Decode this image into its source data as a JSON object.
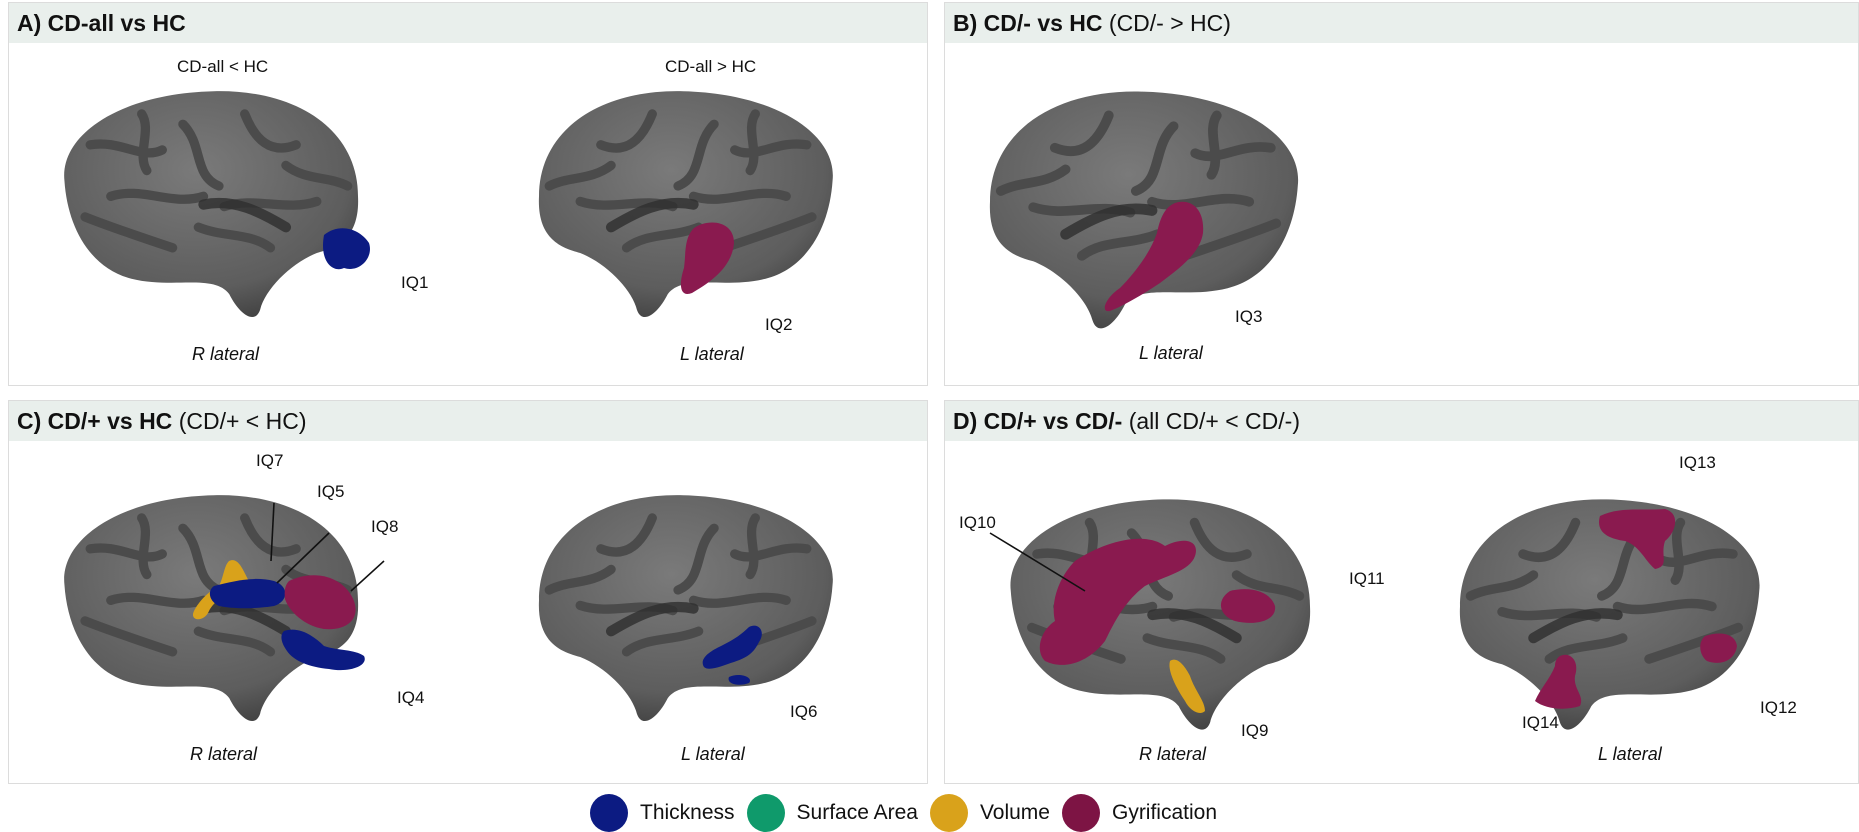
{
  "panels": {
    "a": {
      "title": "A) CD-all vs HC",
      "subtitle": "",
      "col1": "CD-all < HC",
      "col2": "CD-all > HC",
      "view1": "R lateral",
      "view2": "L lateral",
      "iq1": "IQ1",
      "iq2": "IQ2"
    },
    "b": {
      "title": "B) CD/- vs HC",
      "subtitle": "(CD/- > HC)",
      "view1": "L lateral",
      "iq3": "IQ3"
    },
    "c": {
      "title": "C) CD/+ vs HC",
      "subtitle": "(CD/+ < HC)",
      "view1": "R lateral",
      "view2": "L lateral",
      "iq4": "IQ4",
      "iq5": "IQ5",
      "iq6": "IQ6",
      "iq7": "IQ7",
      "iq8": "IQ8"
    },
    "d": {
      "title": "D) CD/+ vs CD/-",
      "subtitle": "(all CD/+ < CD/-)",
      "view1": "R lateral",
      "view2": "L lateral",
      "iq9": "IQ9",
      "iq10": "IQ10",
      "iq11": "IQ11",
      "iq12": "IQ12",
      "iq13": "IQ13",
      "iq14": "IQ14"
    }
  },
  "legend": [
    {
      "label": "Thickness",
      "color": "#0c1b82"
    },
    {
      "label": "Surface Area",
      "color": "#0f9a6b"
    },
    {
      "label": "Volume",
      "color": "#d9a21b"
    },
    {
      "label": "Gyrification",
      "color": "#7d1444"
    }
  ],
  "colors": {
    "brain_base": "#6b6b6b",
    "brain_sulci": "#4d4d4d",
    "header_bg": "#e9efec"
  }
}
